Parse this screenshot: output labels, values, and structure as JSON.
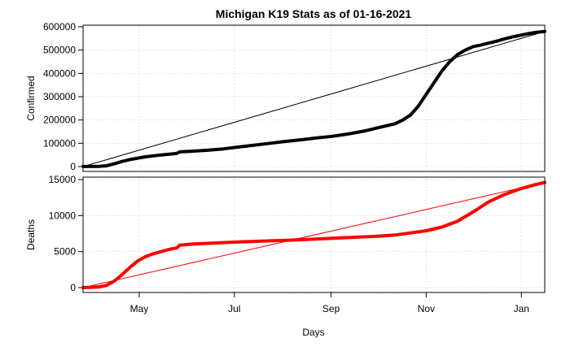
{
  "chart_data": {
    "type": "line",
    "title": "Michigan K19 Stats as of 01-16-2021",
    "xlabel": "Days",
    "x_tick_labels": [
      "May",
      "Jul",
      "Sep",
      "Nov",
      "Jan"
    ],
    "x_tick_days": [
      36,
      97,
      159,
      220,
      281
    ],
    "xlim": [
      0,
      296
    ],
    "grid": true,
    "panels": [
      {
        "ylabel": "Confirmed",
        "ylim": [
          0,
          600000
        ],
        "y_ticks": [
          0,
          100000,
          200000,
          300000,
          400000,
          500000,
          600000
        ],
        "y_tick_labels": [
          "0",
          "100000",
          "200000",
          "300000",
          "400000",
          "500000",
          "600000"
        ],
        "color": "#000000",
        "trend_line": {
          "x": [
            0,
            296
          ],
          "y": [
            0,
            580000
          ]
        },
        "series": {
          "x": [
            0,
            10,
            15,
            20,
            25,
            30,
            40,
            50,
            60,
            62,
            70,
            80,
            90,
            100,
            110,
            120,
            130,
            140,
            150,
            160,
            170,
            180,
            190,
            200,
            205,
            210,
            215,
            220,
            225,
            230,
            235,
            240,
            245,
            250,
            255,
            260,
            265,
            270,
            275,
            280,
            285,
            290,
            296
          ],
          "y": [
            500,
            1000,
            3000,
            12000,
            22000,
            30000,
            42000,
            50000,
            56000,
            63000,
            66000,
            70000,
            76000,
            84000,
            92000,
            100000,
            108000,
            115000,
            123000,
            130000,
            140000,
            152000,
            168000,
            184000,
            200000,
            222000,
            260000,
            310000,
            360000,
            410000,
            450000,
            480000,
            500000,
            515000,
            522000,
            530000,
            538000,
            548000,
            556000,
            563000,
            570000,
            576000,
            580000
          ]
        }
      },
      {
        "ylabel": "Deaths",
        "ylim": [
          0,
          15000
        ],
        "y_ticks": [
          0,
          5000,
          10000,
          15000
        ],
        "y_tick_labels": [
          "0",
          "5000",
          "10000",
          "15000"
        ],
        "color": "#ff0000",
        "trend_line": {
          "x": [
            0,
            296
          ],
          "y": [
            0,
            14600
          ]
        },
        "series": {
          "x": [
            0,
            10,
            15,
            20,
            25,
            30,
            35,
            40,
            45,
            50,
            55,
            60,
            62,
            70,
            80,
            90,
            100,
            110,
            120,
            130,
            140,
            150,
            160,
            170,
            180,
            190,
            200,
            210,
            220,
            230,
            240,
            250,
            255,
            260,
            265,
            270,
            275,
            280,
            285,
            290,
            296
          ],
          "y": [
            0,
            80,
            300,
            900,
            1800,
            2800,
            3700,
            4300,
            4700,
            5000,
            5300,
            5500,
            5900,
            6050,
            6150,
            6250,
            6350,
            6420,
            6500,
            6580,
            6650,
            6750,
            6850,
            6950,
            7050,
            7150,
            7300,
            7600,
            7900,
            8400,
            9200,
            10500,
            11200,
            11900,
            12400,
            12900,
            13300,
            13700,
            14000,
            14300,
            14600
          ]
        }
      }
    ]
  }
}
